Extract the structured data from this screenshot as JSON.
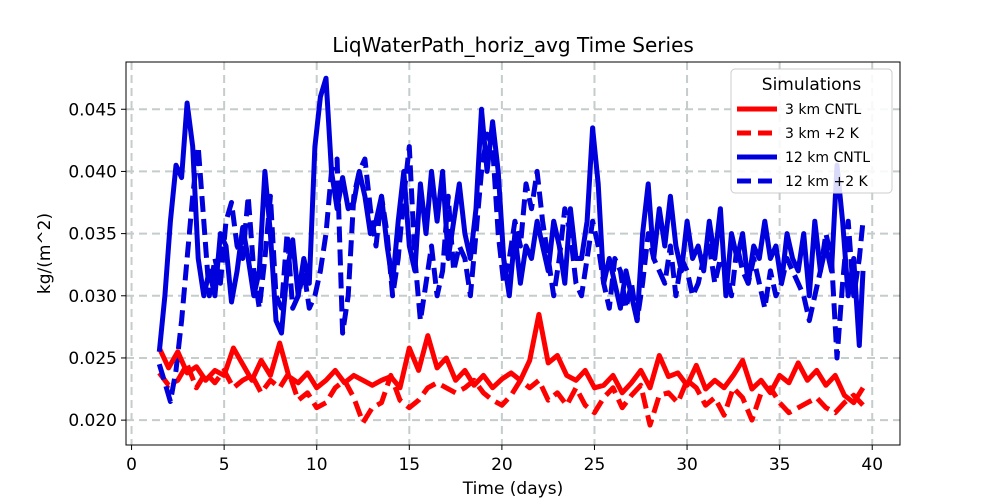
{
  "chart_data": {
    "type": "line",
    "title": "LiqWaterPath_horiz_avg Time Series",
    "xlabel": "Time (days)",
    "ylabel": "kg/(m^2)",
    "xlim": [
      -0.3,
      41.5
    ],
    "ylim": [
      0.018,
      0.0488
    ],
    "xticks": [
      0,
      5,
      10,
      15,
      20,
      25,
      30,
      35,
      40
    ],
    "xtick_labels": [
      "0",
      "5",
      "10",
      "15",
      "20",
      "25",
      "30",
      "35",
      "40"
    ],
    "yticks": [
      0.02,
      0.025,
      0.03,
      0.035,
      0.04,
      0.045
    ],
    "ytick_labels": [
      "0.020",
      "0.025",
      "0.030",
      "0.035",
      "0.040",
      "0.045"
    ],
    "grid": true,
    "legend": {
      "title": "Simulations",
      "position": "top-right"
    },
    "series": [
      {
        "name": "3 km CNTL",
        "color": "#ff0000",
        "dash": "solid",
        "x": [
          1.5,
          2.0,
          2.5,
          3.0,
          3.5,
          4.0,
          4.5,
          5.0,
          5.5,
          6.0,
          6.5,
          7.0,
          7.5,
          8.0,
          8.5,
          9.0,
          9.5,
          10.0,
          10.5,
          11.0,
          11.5,
          12.0,
          12.5,
          13.0,
          13.5,
          14.0,
          14.5,
          15.0,
          15.5,
          16.0,
          16.5,
          17.0,
          17.5,
          18.0,
          18.5,
          19.0,
          19.5,
          20.0,
          20.5,
          21.0,
          21.5,
          22.0,
          22.5,
          23.0,
          23.5,
          24.0,
          24.5,
          25.0,
          25.5,
          26.0,
          26.5,
          27.0,
          27.5,
          28.0,
          28.5,
          29.0,
          29.5,
          30.0,
          30.5,
          31.0,
          31.5,
          32.0,
          32.5,
          33.0,
          33.5,
          34.0,
          34.5,
          35.0,
          35.5,
          36.0,
          36.5,
          37.0,
          37.5,
          38.0,
          38.5,
          39.0,
          39.5
        ],
        "y": [
          0.0258,
          0.0242,
          0.0255,
          0.0238,
          0.0243,
          0.0232,
          0.024,
          0.0236,
          0.0258,
          0.0245,
          0.0232,
          0.0248,
          0.0236,
          0.0262,
          0.0235,
          0.023,
          0.0238,
          0.0226,
          0.0232,
          0.024,
          0.023,
          0.0236,
          0.0232,
          0.0228,
          0.0232,
          0.0235,
          0.0226,
          0.0258,
          0.024,
          0.0268,
          0.0242,
          0.025,
          0.0232,
          0.024,
          0.0228,
          0.0236,
          0.0226,
          0.0233,
          0.0238,
          0.0232,
          0.0248,
          0.0285,
          0.0246,
          0.0252,
          0.0236,
          0.0232,
          0.024,
          0.0226,
          0.0228,
          0.0236,
          0.0222,
          0.023,
          0.024,
          0.0226,
          0.0252,
          0.0235,
          0.0238,
          0.0228,
          0.0244,
          0.0225,
          0.0232,
          0.0226,
          0.0236,
          0.0248,
          0.0225,
          0.0232,
          0.0222,
          0.0236,
          0.023,
          0.0246,
          0.0232,
          0.024,
          0.0228,
          0.0236,
          0.022,
          0.0214,
          0.0226
        ]
      },
      {
        "name": "3 km +2 K",
        "color": "#ff0000",
        "dash": "dashed",
        "x": [
          1.5,
          2.0,
          2.5,
          3.0,
          3.5,
          4.0,
          4.5,
          5.0,
          5.5,
          6.0,
          6.5,
          7.0,
          7.5,
          8.0,
          8.5,
          9.0,
          9.5,
          10.0,
          10.5,
          11.0,
          11.5,
          12.0,
          12.5,
          13.0,
          13.5,
          14.0,
          14.5,
          15.0,
          15.5,
          16.0,
          16.5,
          17.0,
          17.5,
          18.0,
          18.5,
          19.0,
          19.5,
          20.0,
          20.5,
          21.0,
          21.5,
          22.0,
          22.5,
          23.0,
          23.5,
          24.0,
          24.5,
          25.0,
          25.5,
          26.0,
          26.5,
          27.0,
          27.5,
          28.0,
          28.5,
          29.0,
          29.5,
          30.0,
          30.5,
          31.0,
          31.5,
          32.0,
          32.5,
          33.0,
          33.5,
          34.0,
          34.5,
          35.0,
          35.5,
          36.0,
          36.5,
          37.0,
          37.5,
          38.0,
          38.5,
          39.0,
          39.5
        ],
        "y": [
          0.0238,
          0.0228,
          0.0232,
          0.0245,
          0.0226,
          0.0238,
          0.023,
          0.024,
          0.0226,
          0.0232,
          0.0236,
          0.0222,
          0.0232,
          0.0226,
          0.0238,
          0.0216,
          0.0222,
          0.021,
          0.0214,
          0.0226,
          0.0232,
          0.0218,
          0.0198,
          0.021,
          0.0214,
          0.0236,
          0.0216,
          0.021,
          0.0216,
          0.0226,
          0.023,
          0.0226,
          0.0222,
          0.0226,
          0.0232,
          0.0222,
          0.0216,
          0.0212,
          0.022,
          0.0232,
          0.0226,
          0.0232,
          0.0216,
          0.0222,
          0.0212,
          0.0226,
          0.0212,
          0.0206,
          0.0218,
          0.0226,
          0.021,
          0.022,
          0.0228,
          0.0196,
          0.022,
          0.0222,
          0.0214,
          0.0232,
          0.0226,
          0.0212,
          0.0218,
          0.0204,
          0.0226,
          0.0218,
          0.02,
          0.0222,
          0.0226,
          0.0214,
          0.0206,
          0.021,
          0.0214,
          0.0218,
          0.021,
          0.0206,
          0.0214,
          0.022,
          0.0212
        ]
      },
      {
        "name": "12 km CNTL",
        "color": "#0000dd",
        "dash": "solid",
        "x": [
          1.5,
          1.8,
          2.1,
          2.4,
          2.7,
          3.0,
          3.3,
          3.6,
          3.9,
          4.2,
          4.5,
          4.8,
          5.1,
          5.4,
          5.7,
          6.0,
          6.3,
          6.6,
          6.9,
          7.2,
          7.5,
          7.8,
          8.1,
          8.4,
          8.7,
          9.0,
          9.3,
          9.6,
          9.9,
          10.2,
          10.5,
          10.8,
          11.1,
          11.4,
          11.7,
          12.0,
          12.3,
          12.6,
          12.9,
          13.2,
          13.5,
          13.8,
          14.1,
          14.4,
          14.7,
          15.0,
          15.3,
          15.6,
          15.9,
          16.2,
          16.5,
          16.8,
          17.1,
          17.4,
          17.7,
          18.0,
          18.3,
          18.6,
          18.9,
          19.2,
          19.5,
          19.8,
          20.1,
          20.4,
          20.7,
          21.0,
          21.3,
          21.6,
          21.9,
          22.2,
          22.5,
          22.8,
          23.1,
          23.4,
          23.7,
          24.0,
          24.3,
          24.6,
          24.9,
          25.2,
          25.5,
          25.8,
          26.1,
          26.4,
          26.7,
          27.0,
          27.3,
          27.6,
          27.9,
          28.2,
          28.5,
          28.8,
          29.1,
          29.4,
          29.7,
          30.0,
          30.3,
          30.6,
          30.9,
          31.2,
          31.5,
          31.8,
          32.1,
          32.4,
          32.7,
          33.0,
          33.3,
          33.6,
          33.9,
          34.2,
          34.5,
          34.8,
          35.1,
          35.4,
          35.7,
          36.0,
          36.3,
          36.6,
          36.9,
          37.2,
          37.5,
          37.8,
          38.1,
          38.4,
          38.7,
          39.0,
          39.3,
          39.5
        ],
        "y": [
          0.0255,
          0.03,
          0.036,
          0.0405,
          0.0395,
          0.0455,
          0.042,
          0.033,
          0.03,
          0.032,
          0.03,
          0.035,
          0.034,
          0.0295,
          0.032,
          0.0355,
          0.033,
          0.03,
          0.032,
          0.04,
          0.035,
          0.028,
          0.027,
          0.032,
          0.0345,
          0.03,
          0.033,
          0.031,
          0.042,
          0.046,
          0.0475,
          0.04,
          0.037,
          0.0395,
          0.037,
          0.0375,
          0.04,
          0.038,
          0.035,
          0.036,
          0.038,
          0.034,
          0.031,
          0.036,
          0.04,
          0.034,
          0.032,
          0.039,
          0.035,
          0.04,
          0.036,
          0.04,
          0.033,
          0.036,
          0.039,
          0.035,
          0.033,
          0.037,
          0.045,
          0.04,
          0.044,
          0.04,
          0.033,
          0.03,
          0.035,
          0.031,
          0.034,
          0.033,
          0.036,
          0.034,
          0.032,
          0.036,
          0.034,
          0.031,
          0.037,
          0.033,
          0.033,
          0.036,
          0.0435,
          0.039,
          0.031,
          0.033,
          0.031,
          0.029,
          0.032,
          0.03,
          0.028,
          0.035,
          0.039,
          0.033,
          0.037,
          0.034,
          0.038,
          0.034,
          0.032,
          0.036,
          0.033,
          0.034,
          0.032,
          0.036,
          0.033,
          0.037,
          0.03,
          0.035,
          0.033,
          0.035,
          0.031,
          0.034,
          0.033,
          0.036,
          0.033,
          0.034,
          0.031,
          0.035,
          0.033,
          0.032,
          0.035,
          0.03,
          0.036,
          0.032,
          0.034,
          0.032,
          0.0405,
          0.036,
          0.03,
          0.033,
          0.026,
          0.032
        ]
      },
      {
        "name": "12 km +2 K",
        "color": "#0000dd",
        "dash": "dashed",
        "x": [
          1.5,
          1.8,
          2.1,
          2.4,
          2.7,
          3.0,
          3.3,
          3.6,
          3.9,
          4.2,
          4.5,
          4.8,
          5.1,
          5.4,
          5.7,
          6.0,
          6.3,
          6.6,
          6.9,
          7.2,
          7.5,
          7.8,
          8.1,
          8.4,
          8.7,
          9.0,
          9.3,
          9.6,
          9.9,
          10.2,
          10.5,
          10.8,
          11.1,
          11.4,
          11.7,
          12.0,
          12.3,
          12.6,
          12.9,
          13.2,
          13.5,
          13.8,
          14.1,
          14.4,
          14.7,
          15.0,
          15.3,
          15.6,
          15.9,
          16.2,
          16.5,
          16.8,
          17.1,
          17.4,
          17.7,
          18.0,
          18.3,
          18.6,
          18.9,
          19.2,
          19.5,
          19.8,
          20.1,
          20.4,
          20.7,
          21.0,
          21.3,
          21.6,
          21.9,
          22.2,
          22.5,
          22.8,
          23.1,
          23.4,
          23.7,
          24.0,
          24.3,
          24.6,
          24.9,
          25.2,
          25.5,
          25.8,
          26.1,
          26.4,
          26.7,
          27.0,
          27.3,
          27.6,
          27.9,
          28.2,
          28.5,
          28.8,
          29.1,
          29.4,
          29.7,
          30.0,
          30.3,
          30.6,
          30.9,
          31.2,
          31.5,
          31.8,
          32.1,
          32.4,
          32.7,
          33.0,
          33.3,
          33.6,
          33.9,
          34.2,
          34.5,
          34.8,
          35.1,
          35.4,
          35.7,
          36.0,
          36.3,
          36.6,
          36.9,
          37.2,
          37.5,
          37.8,
          38.1,
          38.4,
          38.7,
          39.0,
          39.3,
          39.5
        ],
        "y": [
          0.0245,
          0.023,
          0.0215,
          0.024,
          0.028,
          0.033,
          0.038,
          0.042,
          0.036,
          0.03,
          0.033,
          0.031,
          0.036,
          0.0375,
          0.034,
          0.033,
          0.038,
          0.032,
          0.029,
          0.033,
          0.038,
          0.03,
          0.029,
          0.035,
          0.029,
          0.03,
          0.032,
          0.029,
          0.03,
          0.032,
          0.035,
          0.04,
          0.041,
          0.027,
          0.03,
          0.038,
          0.04,
          0.041,
          0.037,
          0.034,
          0.038,
          0.035,
          0.03,
          0.033,
          0.038,
          0.042,
          0.033,
          0.028,
          0.031,
          0.034,
          0.03,
          0.032,
          0.038,
          0.032,
          0.034,
          0.033,
          0.03,
          0.035,
          0.04,
          0.043,
          0.042,
          0.035,
          0.031,
          0.033,
          0.036,
          0.034,
          0.039,
          0.037,
          0.04,
          0.036,
          0.033,
          0.03,
          0.033,
          0.037,
          0.035,
          0.031,
          0.03,
          0.033,
          0.036,
          0.034,
          0.031,
          0.029,
          0.033,
          0.032,
          0.029,
          0.031,
          0.028,
          0.031,
          0.035,
          0.033,
          0.032,
          0.031,
          0.034,
          0.03,
          0.033,
          0.032,
          0.03,
          0.031,
          0.033,
          0.034,
          0.031,
          0.033,
          0.032,
          0.03,
          0.034,
          0.032,
          0.031,
          0.033,
          0.031,
          0.029,
          0.032,
          0.03,
          0.031,
          0.033,
          0.032,
          0.031,
          0.03,
          0.028,
          0.03,
          0.032,
          0.035,
          0.033,
          0.025,
          0.031,
          0.036,
          0.03,
          0.033,
          0.036
        ]
      }
    ]
  }
}
